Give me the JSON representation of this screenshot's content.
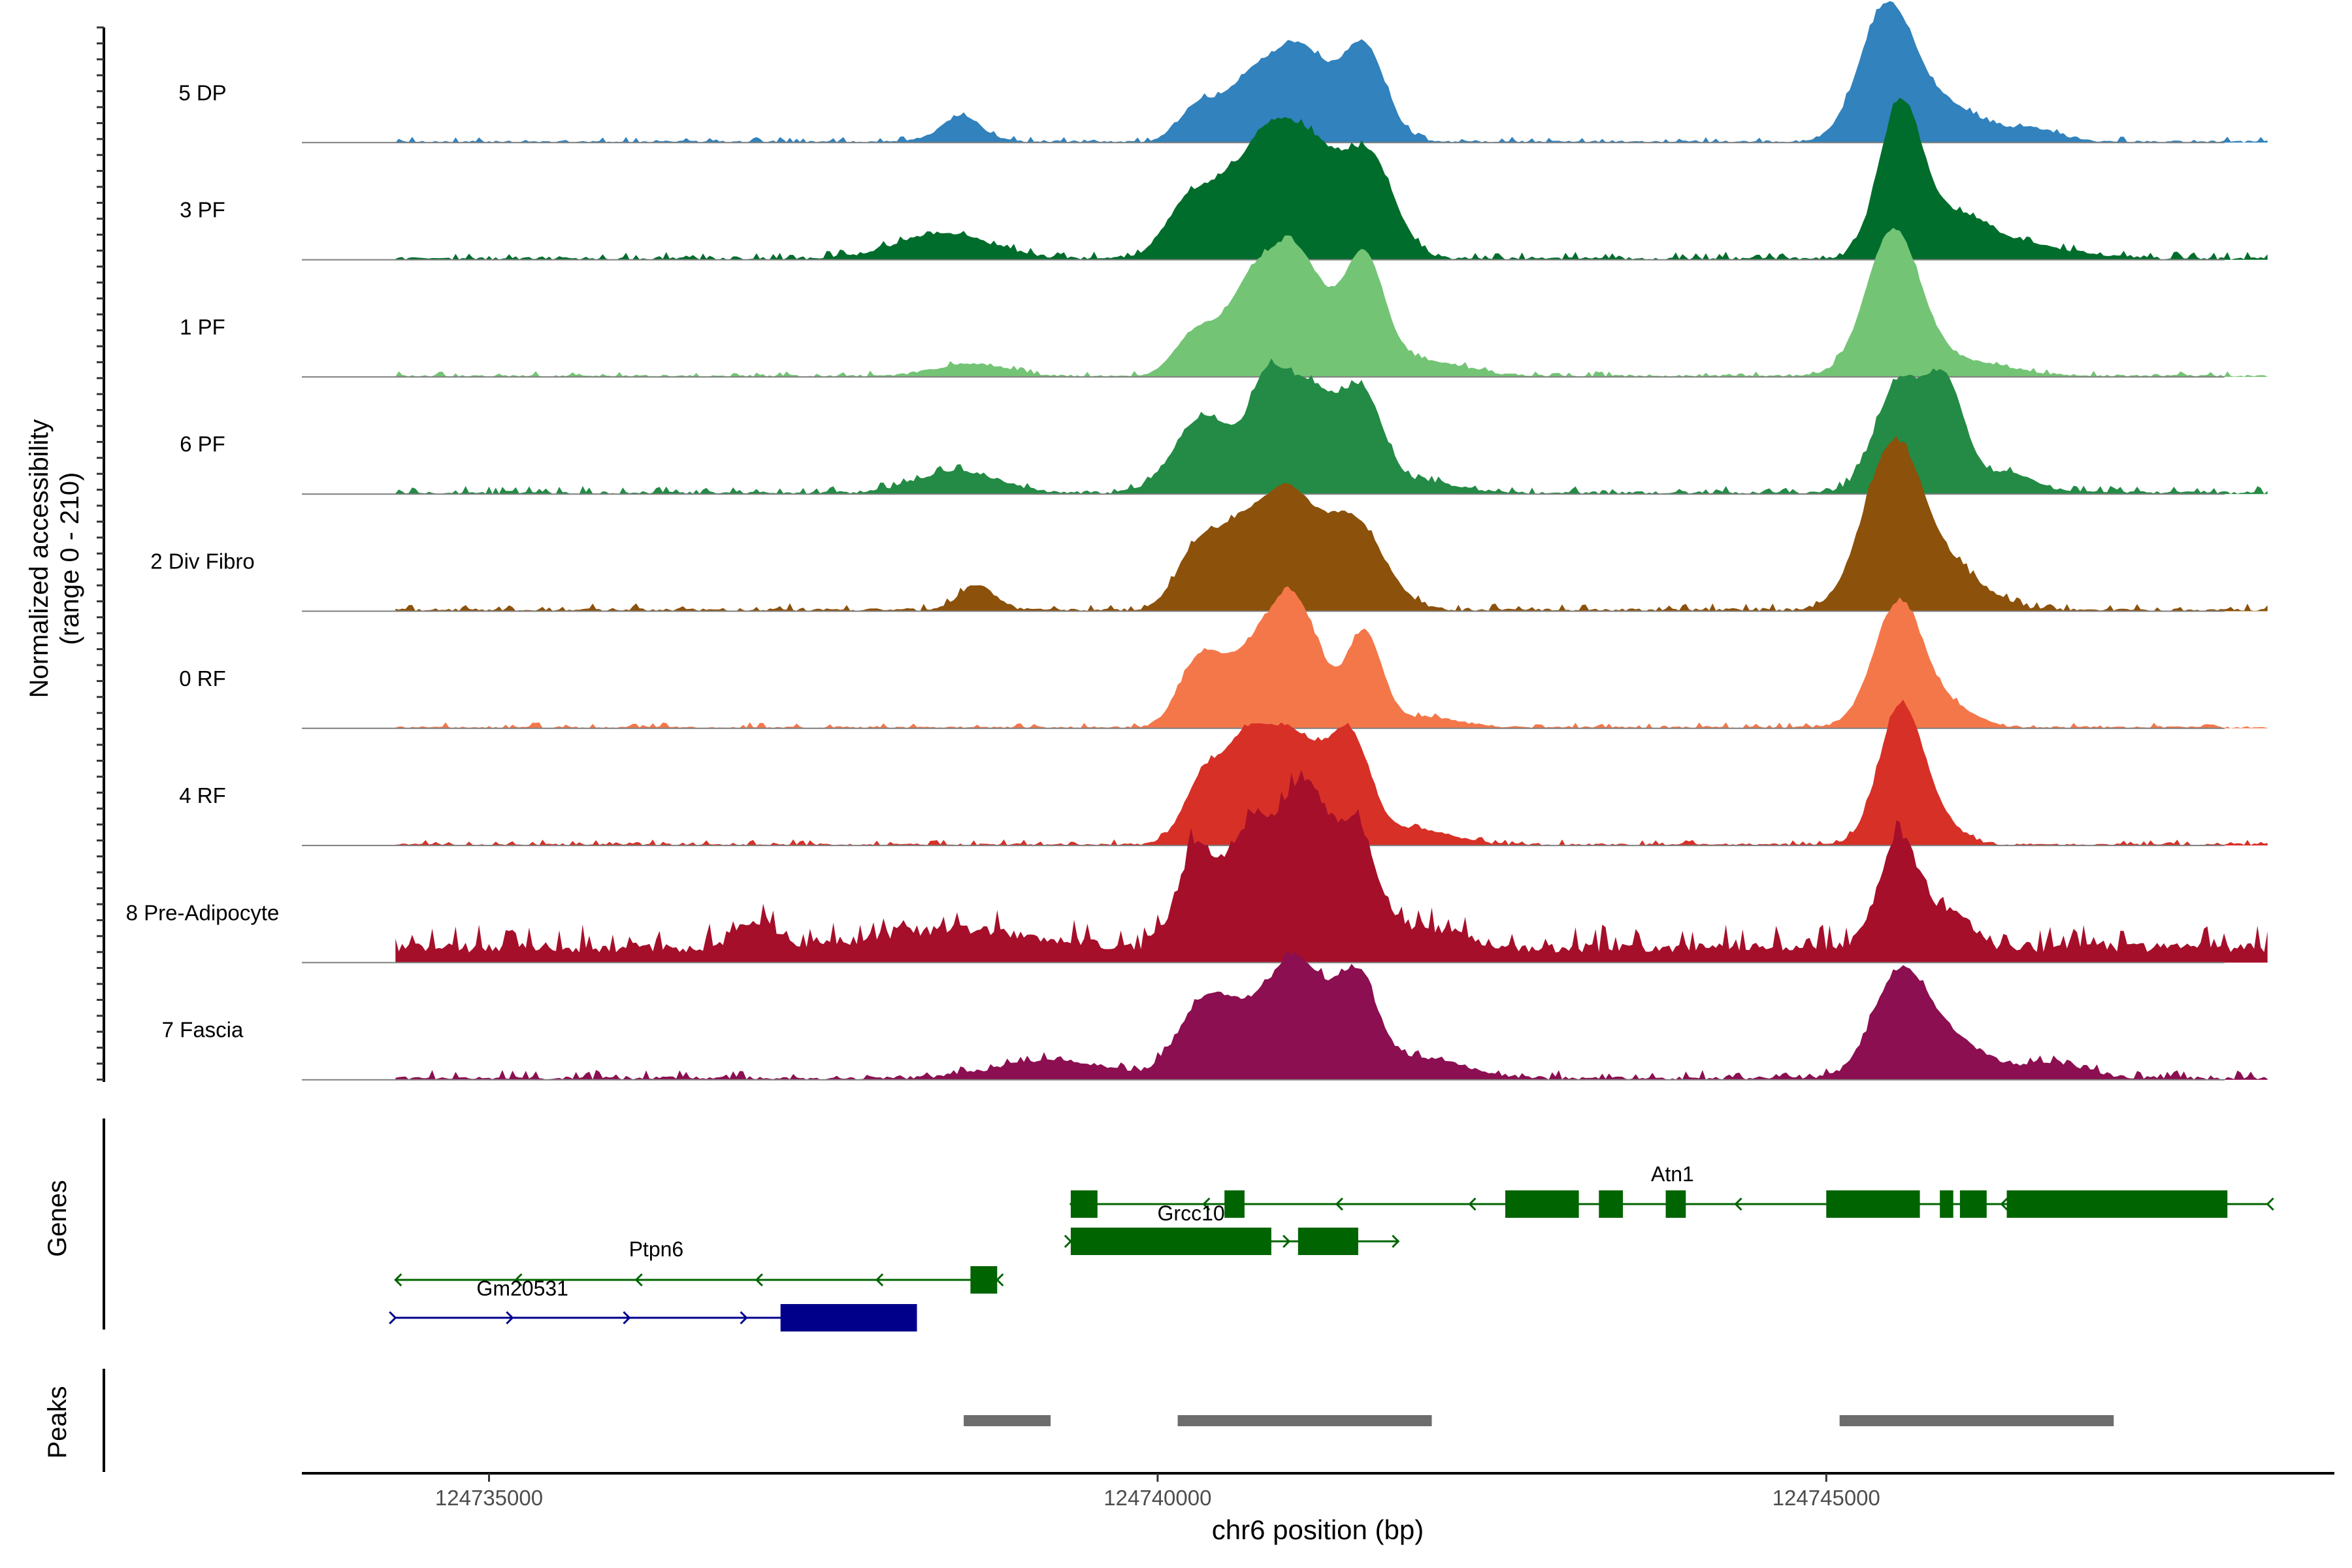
{
  "chart_data": {
    "type": "area",
    "chromosome": "chr6",
    "xlabel": "chr6 position (bp)",
    "xlim": [
      124733600,
      124748800
    ],
    "xticks": [
      124735000,
      124740000,
      124745000
    ],
    "xtick_labels": [
      "124735000",
      "124740000",
      "124745000"
    ],
    "ylabel_line1": "Normalized accessibility",
    "ylabel_line2": "(range 0 - 210)",
    "ylim": [
      0,
      210
    ],
    "genes_label": "Genes",
    "peaks_label": "Peaks",
    "tracks": [
      {
        "name": "5 DP",
        "color": "#3182bd",
        "noise": 6,
        "left": 12,
        "bg": 0,
        "peaks": [
          [
            124738530,
            150,
            25
          ],
          [
            124740300,
            140,
            35
          ],
          [
            124740650,
            170,
            45
          ],
          [
            124741050,
            230,
            95
          ],
          [
            124741550,
            160,
            90
          ],
          [
            124745450,
            200,
            130
          ],
          [
            124745900,
            260,
            35
          ],
          [
            124746550,
            200,
            12
          ]
        ]
      },
      {
        "name": "3 PF",
        "color": "#006d2c",
        "noise": 8,
        "left": 12,
        "bg": 0,
        "peaks": [
          [
            124738400,
            350,
            25
          ],
          [
            124740250,
            180,
            60
          ],
          [
            124740550,
            150,
            50
          ],
          [
            124740800,
            150,
            60
          ],
          [
            124741100,
            250,
            120
          ],
          [
            124741600,
            180,
            90
          ],
          [
            124745550,
            160,
            145
          ],
          [
            124745950,
            260,
            40
          ],
          [
            124746500,
            350,
            12
          ]
        ]
      },
      {
        "name": "1 PF",
        "color": "#74c476",
        "noise": 6,
        "left": 12,
        "bg": 0,
        "peaks": [
          [
            124738600,
            260,
            12
          ],
          [
            124740300,
            160,
            45
          ],
          [
            124740650,
            150,
            48
          ],
          [
            124741000,
            240,
            130
          ],
          [
            124741550,
            150,
            110
          ],
          [
            124742000,
            300,
            15
          ],
          [
            124745500,
            200,
            140
          ],
          [
            124746000,
            350,
            15
          ]
        ]
      },
      {
        "name": "6 PF",
        "color": "#238b45",
        "noise": 8,
        "left": 12,
        "bg": 0,
        "peaks": [
          [
            124738500,
            300,
            22
          ],
          [
            124740350,
            220,
            75
          ],
          [
            124740800,
            120,
            60
          ],
          [
            124741100,
            250,
            110
          ],
          [
            124741550,
            150,
            80
          ],
          [
            124742000,
            250,
            10
          ],
          [
            124745550,
            180,
            110
          ],
          [
            124745900,
            140,
            100
          ],
          [
            124746350,
            200,
            20
          ]
        ]
      },
      {
        "name": "2 Div Fibro",
        "color": "#8c510a",
        "noise": 8,
        "left": 12,
        "bg": 0,
        "peaks": [
          [
            124738650,
            130,
            25
          ],
          [
            124740300,
            160,
            60
          ],
          [
            124740600,
            160,
            60
          ],
          [
            124740950,
            200,
            110
          ],
          [
            124741450,
            230,
            90
          ],
          [
            124745500,
            220,
            160
          ],
          [
            124745950,
            250,
            35
          ]
        ]
      },
      {
        "name": "0 RF",
        "color": "#f4774a",
        "noise": 6,
        "left": 12,
        "bg": 0,
        "peaks": [
          [
            124740300,
            150,
            60
          ],
          [
            124740600,
            180,
            48
          ],
          [
            124741000,
            210,
            130
          ],
          [
            124741550,
            130,
            90
          ],
          [
            124742000,
            250,
            10
          ],
          [
            124745550,
            190,
            125
          ],
          [
            124746000,
            160,
            15
          ]
        ]
      },
      {
        "name": "4 RF",
        "color": "#d73027",
        "noise": 6,
        "left": 12,
        "bg": 0,
        "peaks": [
          [
            124740350,
            150,
            65
          ],
          [
            124740650,
            150,
            65
          ],
          [
            124741000,
            250,
            110
          ],
          [
            124741450,
            150,
            90
          ],
          [
            124741950,
            250,
            15
          ],
          [
            124745550,
            160,
            130
          ],
          [
            124745800,
            180,
            25
          ]
        ]
      },
      {
        "name": "8 Pre-Adipocyte",
        "color": "#a50f2a",
        "noise": 28,
        "left": 12,
        "bg": 10,
        "peaks": [
          [
            124737000,
            150,
            25
          ],
          [
            124738500,
            600,
            18
          ],
          [
            124740300,
            150,
            100
          ],
          [
            124740700,
            150,
            115
          ],
          [
            124741100,
            180,
            160
          ],
          [
            124741500,
            150,
            110
          ],
          [
            124742050,
            250,
            18
          ],
          [
            124745550,
            150,
            110
          ],
          [
            124745950,
            150,
            35
          ]
        ]
      },
      {
        "name": "7 Fascia",
        "color": "#8b0f51",
        "noise": 10,
        "left": 12,
        "bg": 0,
        "peaks": [
          [
            124739200,
            400,
            18
          ],
          [
            124740350,
            200,
            70
          ],
          [
            124740800,
            250,
            60
          ],
          [
            124741100,
            200,
            85
          ],
          [
            124741500,
            150,
            90
          ],
          [
            124742000,
            300,
            20
          ],
          [
            124745550,
            200,
            100
          ],
          [
            124745950,
            250,
            35
          ],
          [
            124746700,
            250,
            15
          ]
        ]
      }
    ],
    "genes": [
      {
        "name": "Atn1",
        "strand": "-",
        "color": "#006400",
        "start": 124739350,
        "end": 124748300,
        "exons": [
          [
            124739350,
            124739550
          ],
          [
            124740500,
            124740650
          ],
          [
            124742600,
            124743150
          ],
          [
            124743300,
            124743480
          ],
          [
            124743800,
            124743950
          ],
          [
            124745000,
            124745700
          ],
          [
            124745850,
            124745950
          ],
          [
            124746000,
            124746200
          ],
          [
            124746350,
            124748000
          ]
        ]
      },
      {
        "name": "Grcc10",
        "strand": "+",
        "color": "#006400",
        "start": 124739350,
        "end": 124741800,
        "exons": [
          [
            124739350,
            124740850
          ],
          [
            124741050,
            124741500
          ]
        ]
      },
      {
        "name": "Ptpn6",
        "strand": "-",
        "color": "#006400",
        "start": 124734300,
        "end": 124738800,
        "exons": [
          [
            124738600,
            124738800
          ]
        ]
      },
      {
        "name": "Gm20531",
        "strand": "+",
        "color": "#00008b",
        "start": 124734300,
        "end": 124737800,
        "exons": [
          [
            124737180,
            124738200
          ]
        ]
      }
    ],
    "peak_regions": [
      [
        124738550,
        124739200
      ],
      [
        124740150,
        124742050
      ],
      [
        124745100,
        124747150
      ]
    ]
  }
}
